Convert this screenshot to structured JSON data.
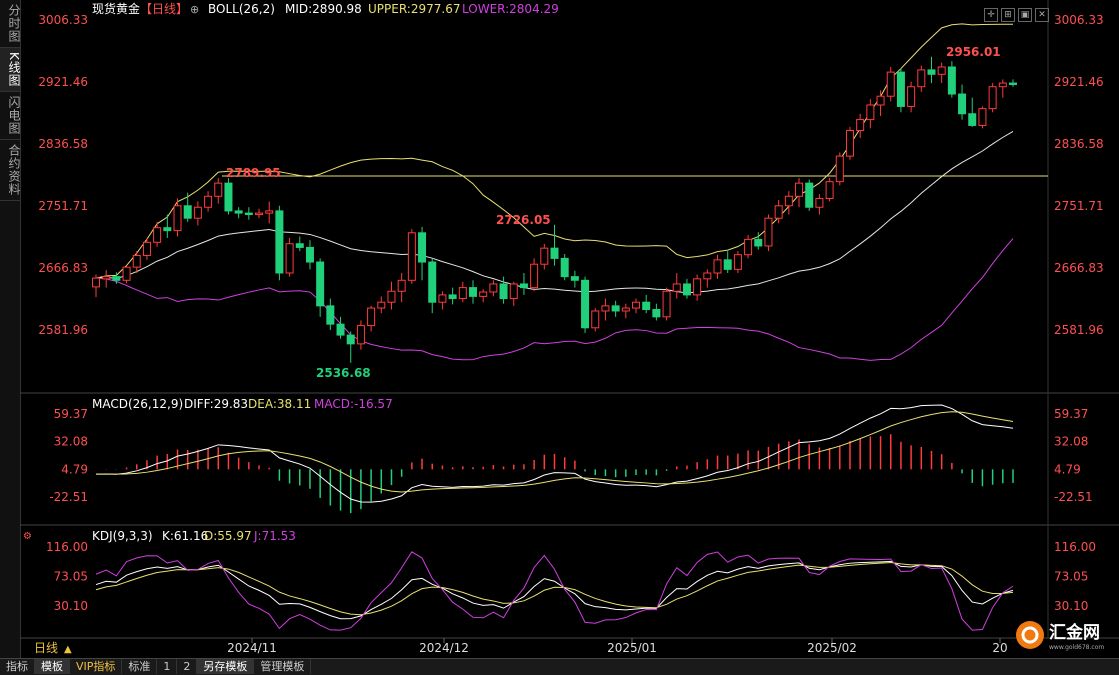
{
  "sidebar": {
    "tabs": [
      "分时图",
      "K线图",
      "闪电图",
      "合约资料"
    ],
    "active": 1
  },
  "main_panel": {
    "title": "现货黄金",
    "period": "【日线】",
    "indicator": "BOLL(26,2)",
    "mid_label": "MID:2890.98",
    "upper_label": "UPPER:2977.67",
    "lower_label": "LOWER:2804.29",
    "y_ticks": [
      "3006.33",
      "2921.46",
      "2836.58",
      "2751.71",
      "2666.83",
      "2581.96"
    ],
    "annotations": {
      "high1": "2789.95",
      "low1": "2536.68",
      "high2": "2726.05",
      "high3": "2956.01"
    }
  },
  "macd_panel": {
    "label": "MACD(26,12,9)",
    "diff_label": "DIFF:29.83",
    "dea_label": "DEA:38.11",
    "macd_label": "MACD:-16.57",
    "y_ticks": [
      "59.37",
      "32.08",
      "4.79",
      "-22.51"
    ]
  },
  "kdj_panel": {
    "label": "KDJ(9,3,3)",
    "k_label": "K:61.16",
    "d_label": "D:55.97",
    "j_label": "J:71.53",
    "y_ticks": [
      "116.00",
      "73.05",
      "30.10"
    ]
  },
  "x_axis": {
    "period_label": "日线",
    "ticks": [
      "2024/11",
      "2024/12",
      "2025/01",
      "2025/02",
      "20"
    ]
  },
  "bottombar": [
    "指标",
    "模板",
    "VIP指标",
    "标准",
    "1",
    "2",
    "另存模板",
    "管理模板"
  ],
  "logo": {
    "text": "汇金网",
    "url": "www.gold678.com"
  },
  "colors": {
    "up": "#ff3b3b",
    "down": "#21d07a",
    "mid": "#e6e6e6",
    "upper": "#e8e070",
    "lower": "#d040e0",
    "hline": "#e8e070",
    "axis_text": "#ff5050"
  },
  "chart_data": {
    "type": "candlestick",
    "symbol": "现货黄金",
    "candles": [
      [
        2641,
        2658,
        2627,
        2653
      ],
      [
        2652,
        2664,
        2640,
        2655
      ],
      [
        2655,
        2661,
        2645,
        2650
      ],
      [
        2650,
        2670,
        2646,
        2668
      ],
      [
        2668,
        2690,
        2660,
        2684
      ],
      [
        2684,
        2708,
        2678,
        2702
      ],
      [
        2702,
        2730,
        2696,
        2722
      ],
      [
        2722,
        2740,
        2708,
        2718
      ],
      [
        2718,
        2762,
        2710,
        2752
      ],
      [
        2752,
        2770,
        2730,
        2735
      ],
      [
        2735,
        2758,
        2725,
        2750
      ],
      [
        2750,
        2772,
        2744,
        2765
      ],
      [
        2765,
        2790,
        2755,
        2783
      ],
      [
        2783,
        2790,
        2740,
        2745
      ],
      [
        2745,
        2750,
        2735,
        2742
      ],
      [
        2742,
        2750,
        2733,
        2740
      ],
      [
        2740,
        2748,
        2735,
        2742
      ],
      [
        2742,
        2758,
        2728,
        2745
      ],
      [
        2745,
        2752,
        2650,
        2660
      ],
      [
        2660,
        2708,
        2655,
        2700
      ],
      [
        2700,
        2710,
        2690,
        2695
      ],
      [
        2695,
        2705,
        2665,
        2675
      ],
      [
        2675,
        2680,
        2600,
        2615
      ],
      [
        2615,
        2625,
        2582,
        2590
      ],
      [
        2590,
        2600,
        2570,
        2575
      ],
      [
        2575,
        2580,
        2537,
        2563
      ],
      [
        2563,
        2595,
        2555,
        2588
      ],
      [
        2588,
        2615,
        2580,
        2612
      ],
      [
        2612,
        2628,
        2605,
        2620
      ],
      [
        2620,
        2648,
        2610,
        2635
      ],
      [
        2635,
        2660,
        2620,
        2650
      ],
      [
        2650,
        2720,
        2645,
        2715
      ],
      [
        2715,
        2723,
        2650,
        2675
      ],
      [
        2675,
        2680,
        2605,
        2620
      ],
      [
        2620,
        2635,
        2610,
        2630
      ],
      [
        2630,
        2640,
        2617,
        2625
      ],
      [
        2625,
        2648,
        2620,
        2640
      ],
      [
        2640,
        2650,
        2618,
        2628
      ],
      [
        2628,
        2638,
        2620,
        2634
      ],
      [
        2634,
        2650,
        2628,
        2645
      ],
      [
        2645,
        2655,
        2618,
        2625
      ],
      [
        2625,
        2648,
        2615,
        2645
      ],
      [
        2645,
        2660,
        2630,
        2640
      ],
      [
        2640,
        2680,
        2635,
        2672
      ],
      [
        2672,
        2700,
        2665,
        2694
      ],
      [
        2694,
        2726,
        2670,
        2680
      ],
      [
        2680,
        2686,
        2650,
        2655
      ],
      [
        2655,
        2663,
        2640,
        2650
      ],
      [
        2650,
        2655,
        2578,
        2585
      ],
      [
        2585,
        2612,
        2580,
        2608
      ],
      [
        2608,
        2625,
        2595,
        2615
      ],
      [
        2615,
        2622,
        2600,
        2608
      ],
      [
        2608,
        2618,
        2598,
        2612
      ],
      [
        2612,
        2625,
        2605,
        2620
      ],
      [
        2620,
        2630,
        2605,
        2610
      ],
      [
        2610,
        2618,
        2595,
        2600
      ],
      [
        2600,
        2640,
        2595,
        2635
      ],
      [
        2635,
        2660,
        2625,
        2645
      ],
      [
        2645,
        2652,
        2625,
        2630
      ],
      [
        2630,
        2658,
        2622,
        2652
      ],
      [
        2652,
        2665,
        2640,
        2660
      ],
      [
        2660,
        2685,
        2652,
        2678
      ],
      [
        2678,
        2690,
        2660,
        2665
      ],
      [
        2665,
        2690,
        2660,
        2685
      ],
      [
        2685,
        2712,
        2680,
        2706
      ],
      [
        2706,
        2716,
        2692,
        2697
      ],
      [
        2697,
        2740,
        2690,
        2735
      ],
      [
        2735,
        2760,
        2728,
        2752
      ],
      [
        2752,
        2772,
        2740,
        2765
      ],
      [
        2765,
        2790,
        2750,
        2783
      ],
      [
        2783,
        2788,
        2745,
        2750
      ],
      [
        2750,
        2768,
        2740,
        2762
      ],
      [
        2762,
        2790,
        2758,
        2785
      ],
      [
        2785,
        2825,
        2780,
        2820
      ],
      [
        2820,
        2860,
        2815,
        2855
      ],
      [
        2855,
        2878,
        2845,
        2870
      ],
      [
        2870,
        2898,
        2858,
        2890
      ],
      [
        2890,
        2910,
        2875,
        2902
      ],
      [
        2902,
        2942,
        2895,
        2935
      ],
      [
        2935,
        2940,
        2880,
        2888
      ],
      [
        2888,
        2922,
        2880,
        2915
      ],
      [
        2915,
        2944,
        2908,
        2938
      ],
      [
        2938,
        2956,
        2920,
        2932
      ],
      [
        2932,
        2948,
        2920,
        2942
      ],
      [
        2942,
        2950,
        2900,
        2905
      ],
      [
        2905,
        2918,
        2870,
        2878
      ],
      [
        2878,
        2900,
        2860,
        2862
      ],
      [
        2862,
        2888,
        2858,
        2885
      ],
      [
        2885,
        2920,
        2880,
        2915
      ],
      [
        2915,
        2925,
        2900,
        2920
      ],
      [
        2920,
        2925,
        2915,
        2918
      ]
    ]
  }
}
